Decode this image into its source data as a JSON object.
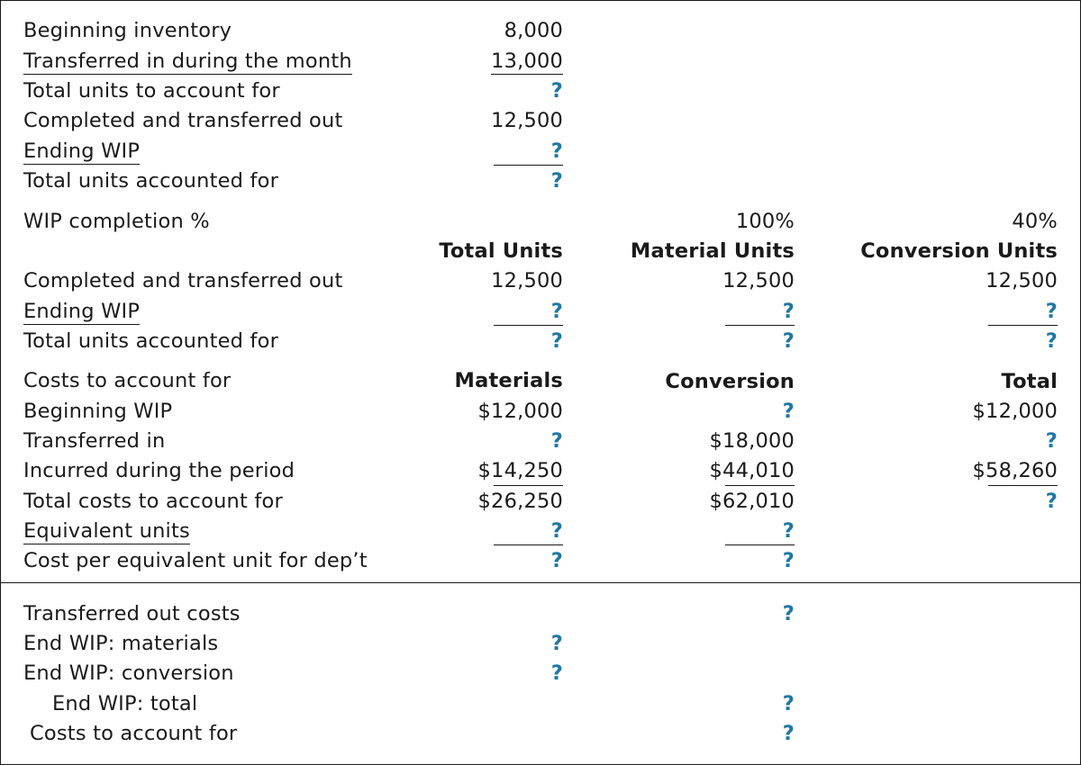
{
  "accent_color": "#1f77a4",
  "units_section": {
    "beginning_inventory": {
      "label": "Beginning inventory",
      "value": "8,000"
    },
    "transferred_in": {
      "label": "Transferred in during the month",
      "value": "13,000"
    },
    "total_to_account": {
      "label": "Total units to account for",
      "value": "?"
    },
    "completed_out": {
      "label": "Completed and transferred out",
      "value": "12,500"
    },
    "ending_wip": {
      "label": "Ending WIP",
      "value": "?"
    },
    "total_accounted": {
      "label": "Total units accounted for",
      "value": "?"
    }
  },
  "equivalent_units": {
    "completion_label": "WIP completion %",
    "material_pct": "100%",
    "conversion_pct": "40%",
    "headers": {
      "total": "Total Units",
      "material": "Material Units",
      "conversion": "Conversion Units"
    },
    "rows": [
      {
        "label": "Completed and transferred out",
        "total": "12,500",
        "material": "12,500",
        "conversion": "12,500"
      },
      {
        "label": "Ending WIP",
        "total": "?",
        "material": "?",
        "conversion": "?"
      },
      {
        "label": "Total units accounted for",
        "total": "?",
        "material": "?",
        "conversion": "?"
      }
    ]
  },
  "costs": {
    "label": "Costs to account for",
    "headers": {
      "materials": "Materials",
      "conversion": "Conversion",
      "total": "Total"
    },
    "rows": [
      {
        "label": "Beginning WIP",
        "materials": "$12,000",
        "conversion": "?",
        "total": "$12,000"
      },
      {
        "label": "Transferred in",
        "materials": "?",
        "conversion": "$18,000",
        "total": "?"
      },
      {
        "label": "Incurred during the period",
        "materials": "$14,250",
        "conversion": "$44,010",
        "total": "$58,260"
      },
      {
        "label": "Total costs to account for",
        "materials": "$26,250",
        "conversion": "$62,010",
        "total": "?"
      },
      {
        "label": "Equivalent units",
        "materials": "?",
        "conversion": "?"
      },
      {
        "label": "Cost per equivalent unit for dep’t",
        "materials": "?",
        "conversion": "?"
      }
    ]
  },
  "assignment": {
    "transferred_out": {
      "label": "Transferred out costs",
      "value": "?"
    },
    "end_wip_materials": {
      "label": "End WIP: materials",
      "value": "?"
    },
    "end_wip_conversion": {
      "label": "End WIP: conversion",
      "value": "?"
    },
    "end_wip_total": {
      "label": "End WIP: total",
      "value": "?"
    },
    "costs_to_account": {
      "label": "Costs to account for",
      "value": "?"
    }
  }
}
